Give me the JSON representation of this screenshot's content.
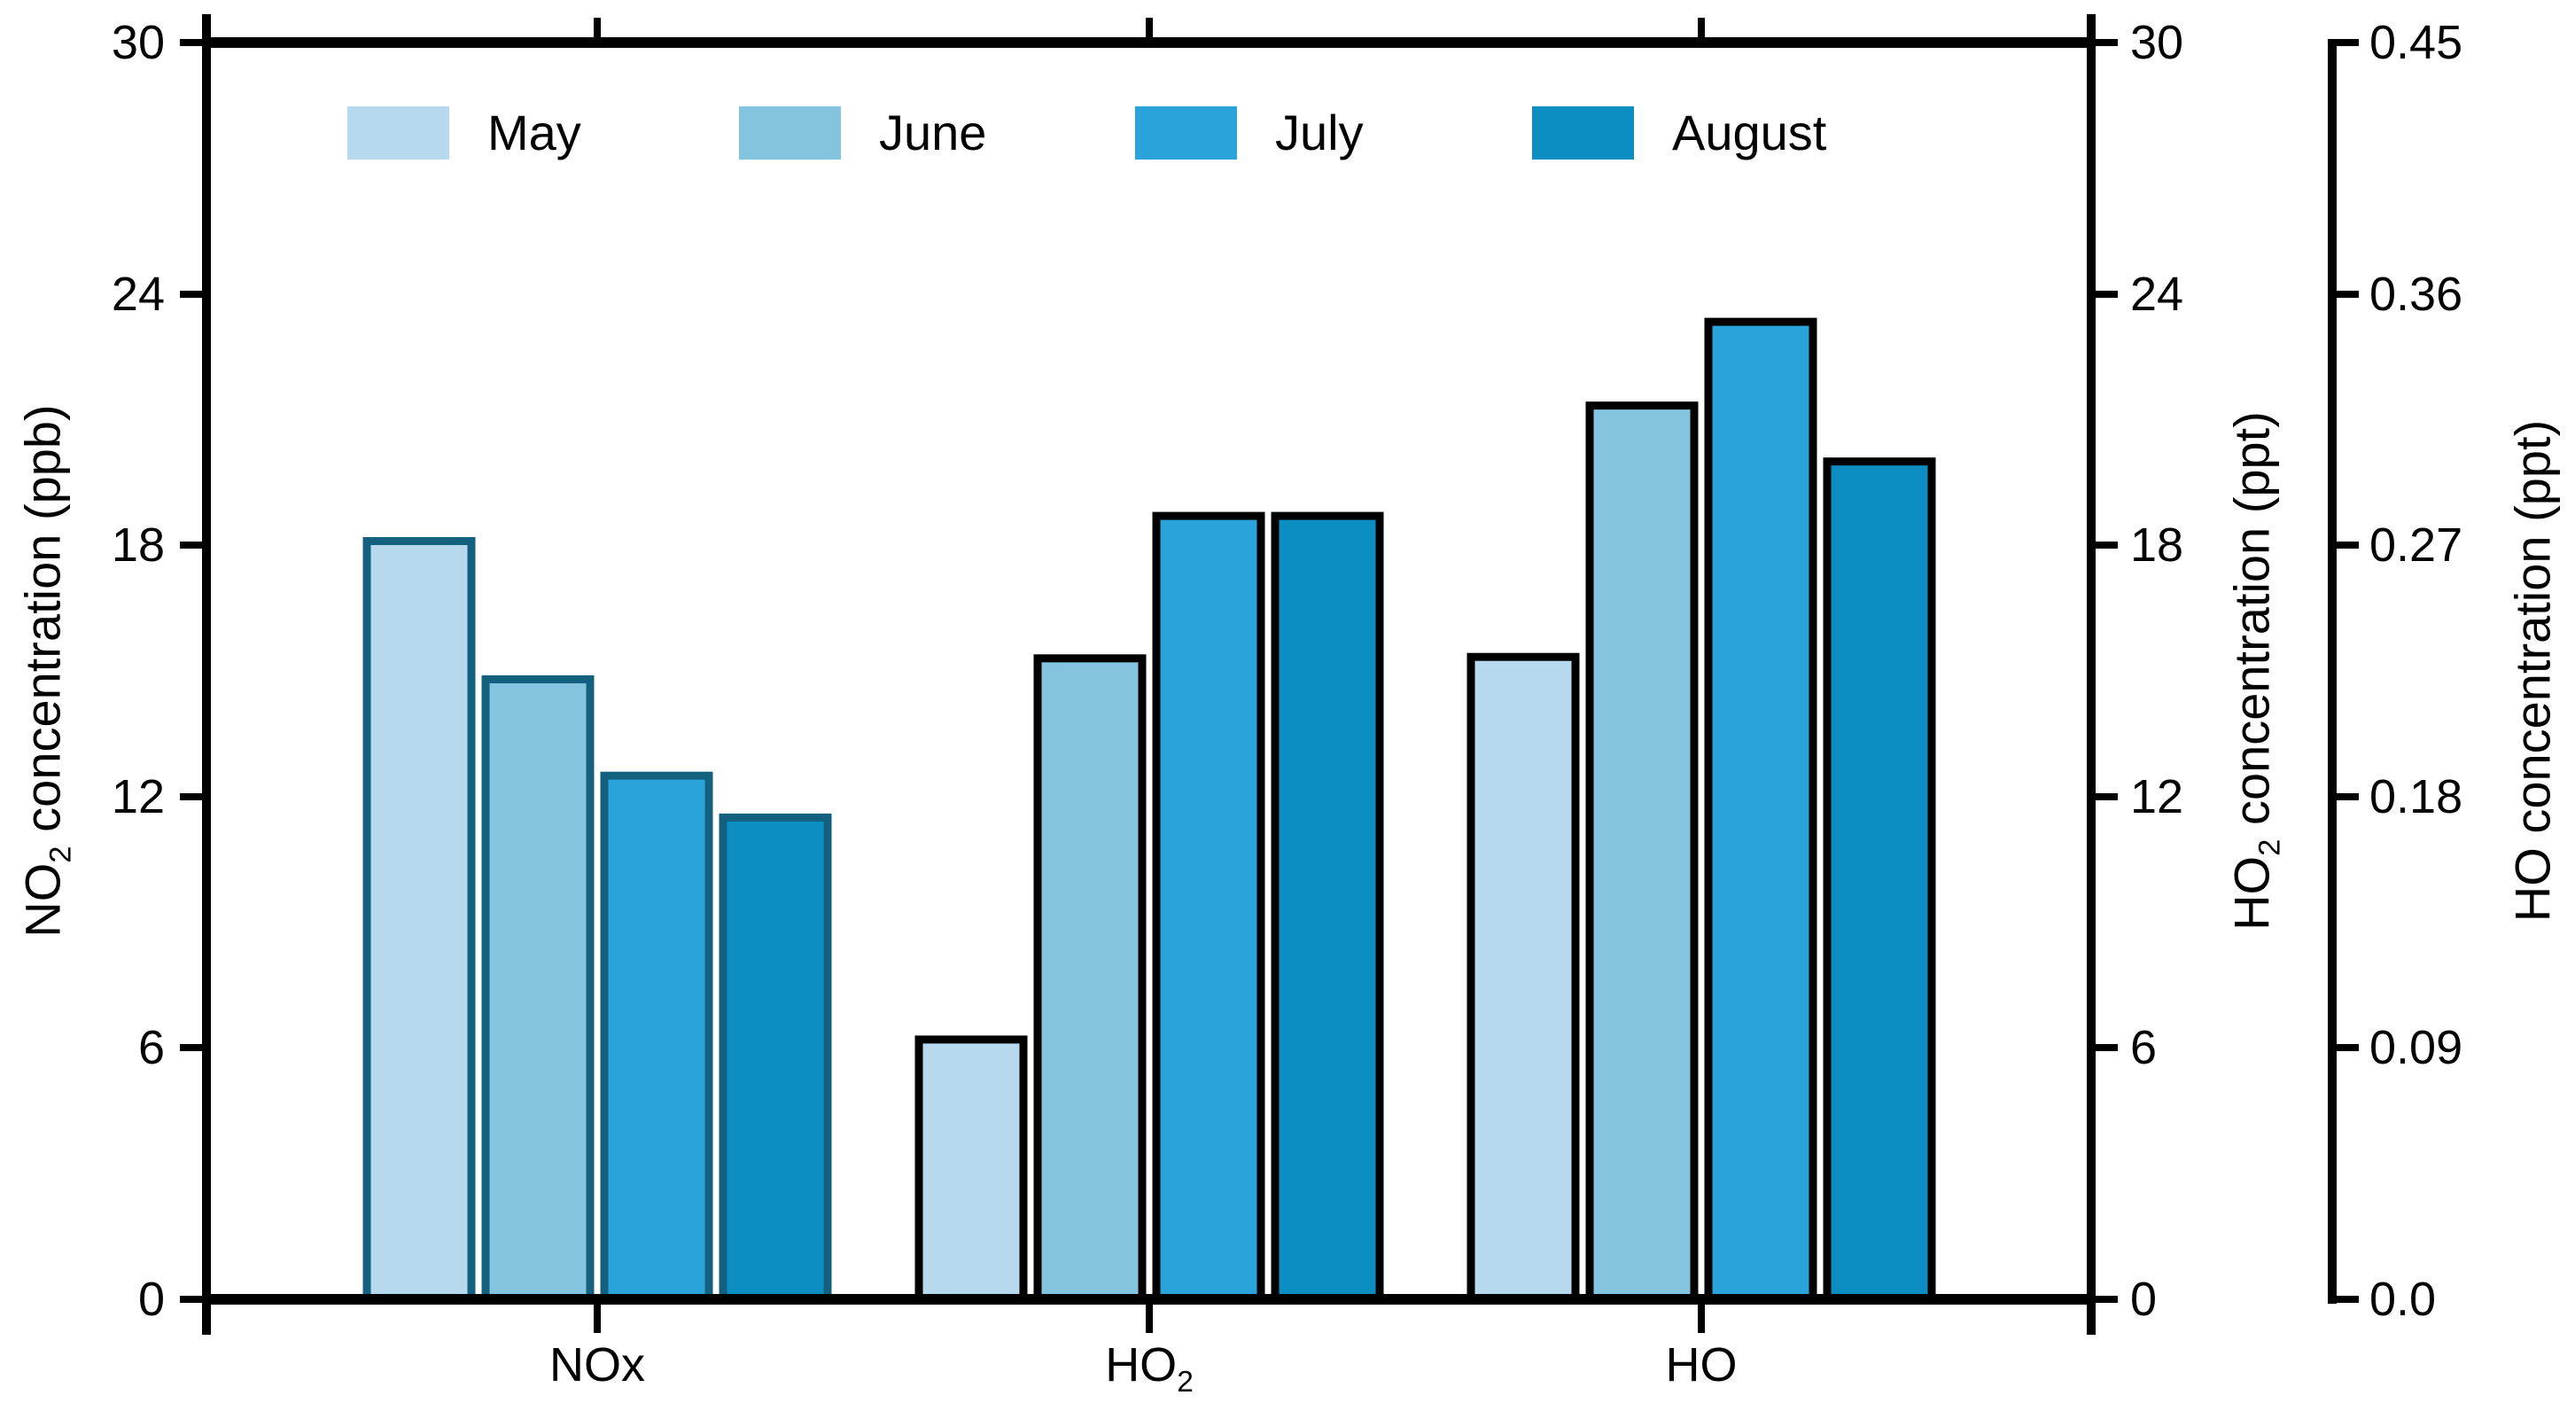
{
  "legend": {
    "position": "top-inside",
    "items": [
      {
        "label": "May",
        "color": "#b7d9ee"
      },
      {
        "label": "June",
        "color": "#84c4de"
      },
      {
        "label": "July",
        "color": "#29a3d9"
      },
      {
        "label": "August",
        "color": "#0d8ec3"
      }
    ]
  },
  "axes": {
    "left": {
      "title_pre": "NO",
      "title_sub": "2",
      "title_post": " concentration (ppb)",
      "tick_labels": [
        "30",
        "24",
        "18",
        "12",
        "6",
        "0"
      ],
      "tick_values": [
        30,
        24,
        18,
        12,
        6,
        0
      ],
      "range": [
        0,
        30
      ]
    },
    "right_inner": {
      "title_pre": "HO",
      "title_sub": "2",
      "title_post": " concentration (ppt)",
      "tick_labels": [
        "30",
        "24",
        "18",
        "12",
        "6",
        "0"
      ],
      "tick_values": [
        30,
        24,
        18,
        12,
        6,
        0
      ],
      "range": [
        0,
        30
      ]
    },
    "right_outer": {
      "title_pre": "HO",
      "title_sub": "",
      "title_post": " concentration (ppt)",
      "tick_labels": [
        "0.45",
        "0.36",
        "0.27",
        "0.18",
        "0.09",
        "0.0"
      ],
      "tick_values": [
        0.45,
        0.36,
        0.27,
        0.18,
        0.09,
        0
      ],
      "range": [
        0,
        0.45
      ]
    },
    "x": {
      "category_labels": [
        {
          "pre": "NOx",
          "sub": ""
        },
        {
          "pre": "HO",
          "sub": "2"
        },
        {
          "pre": "HO",
          "sub": ""
        }
      ]
    }
  },
  "chart_data": {
    "type": "bar",
    "title": "",
    "grid": false,
    "categories": [
      "NOx",
      "HO2",
      "HO"
    ],
    "category_value_axis": [
      "left",
      "right_inner",
      "right_outer"
    ],
    "category_bar_border_colors": [
      "#14607f",
      "#000000",
      "#000000"
    ],
    "series": [
      {
        "name": "May",
        "color": "#b7d9ee",
        "values": [
          18.1,
          6.2,
          0.23
        ]
      },
      {
        "name": "June",
        "color": "#84c4de",
        "values": [
          14.8,
          15.3,
          0.32
        ]
      },
      {
        "name": "July",
        "color": "#29a3d9",
        "values": [
          12.5,
          18.7,
          0.35
        ]
      },
      {
        "name": "August",
        "color": "#0d8ec3",
        "values": [
          11.5,
          18.7,
          0.3
        ]
      }
    ],
    "units": {
      "NOx": "ppb",
      "HO2": "ppt",
      "HO": "ppt"
    },
    "axis_ranges": {
      "left": [
        0,
        30
      ],
      "right_inner": [
        0,
        30
      ],
      "right_outer": [
        0,
        0.45
      ]
    }
  }
}
